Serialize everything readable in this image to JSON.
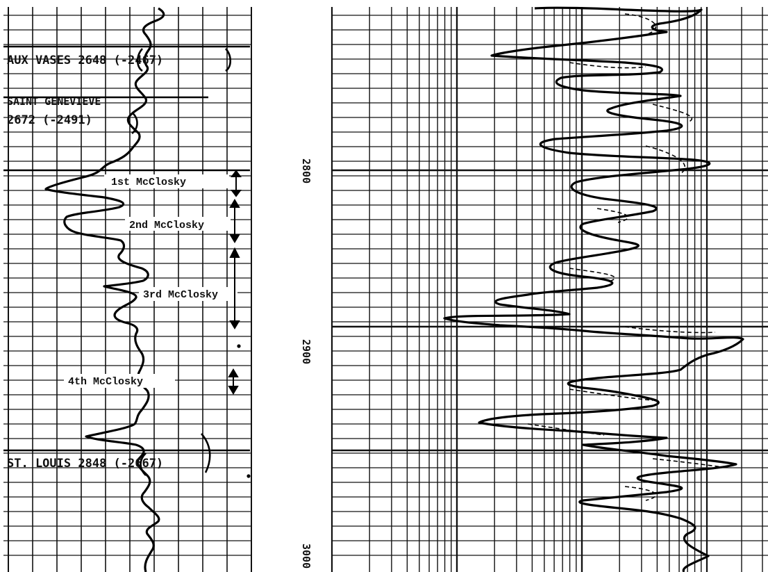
{
  "tops": [
    {
      "id": "aux-vases",
      "text": "AUX VASES 2648 (-2467)"
    },
    {
      "id": "saint-genevieve-1",
      "text": "SAINT GENEVIEVE"
    },
    {
      "id": "saint-genevieve-2",
      "text": "2672 (-2491)"
    },
    {
      "id": "st-louis",
      "text": "ST. LOUIS 2848 (-2667)"
    }
  ],
  "zones": [
    {
      "id": "1st",
      "text": "1st McClosky"
    },
    {
      "id": "2nd",
      "text": "2nd McClosky"
    },
    {
      "id": "3rd",
      "text": "3rd McClosky"
    },
    {
      "id": "4th",
      "text": "4th McClosky"
    }
  ],
  "depth_labels": [
    "2800",
    "2900",
    "3000"
  ]
}
